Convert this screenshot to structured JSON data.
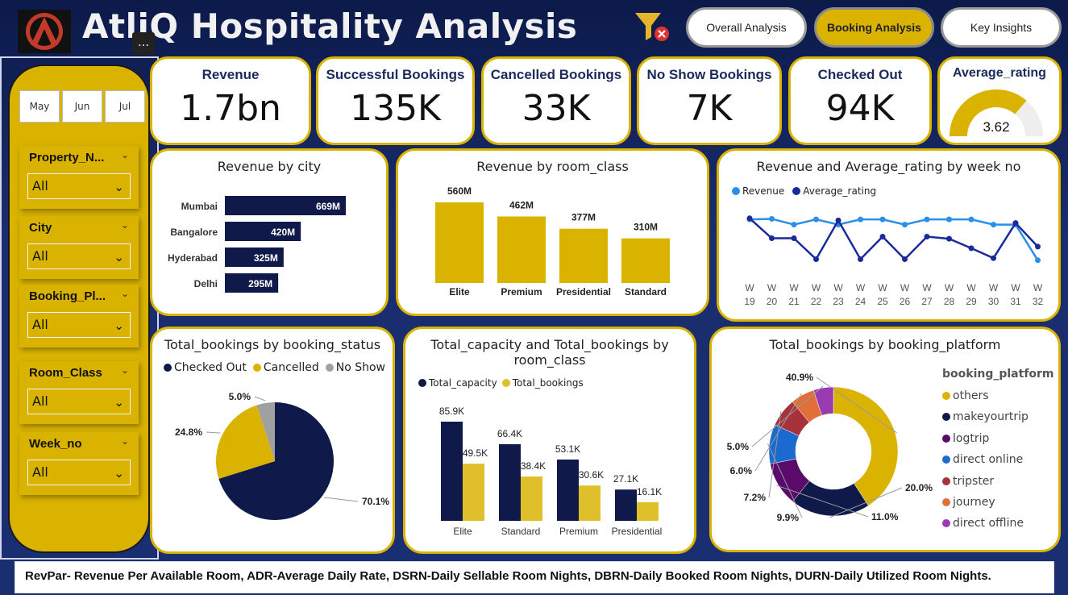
{
  "header": {
    "title": "AtliQ Hospitality Analysis",
    "more_label": "…",
    "nav": [
      "Overall Analysis",
      "Booking Analysis",
      "Key Insights"
    ],
    "active_nav": "Booking Analysis"
  },
  "sidebar": {
    "months": [
      "May",
      "Jun",
      "Jul"
    ],
    "slicers": [
      {
        "label": "Property_N...",
        "value": "All"
      },
      {
        "label": "City",
        "value": "All"
      },
      {
        "label": "Booking_Pl...",
        "value": "All"
      },
      {
        "label": "Room_Class",
        "value": "All"
      },
      {
        "label": "Week_no",
        "value": "All"
      }
    ]
  },
  "kpis": [
    {
      "title": "Revenue",
      "value": "1.7bn"
    },
    {
      "title": "Successful Bookings",
      "value": "135K"
    },
    {
      "title": "Cancelled Bookings",
      "value": "33K"
    },
    {
      "title": "No Show Bookings",
      "value": "7K"
    },
    {
      "title": "Checked Out",
      "value": "94K"
    }
  ],
  "gauge": {
    "title": "Average_rating",
    "value": "3.62",
    "min": 0,
    "max": 5,
    "fill_fraction": 0.724,
    "color_fill": "#d9b300",
    "color_track": "#eeeeee"
  },
  "charts": {
    "revenue_by_city": {
      "title": "Revenue by city"
    },
    "revenue_by_room_class": {
      "title": "Revenue by room_class"
    },
    "revenue_rating_week": {
      "title": "Revenue and Average_rating by week no",
      "legend": [
        "Revenue",
        "Average_rating"
      ]
    },
    "bookings_by_status": {
      "title": "Total_bookings by booking_status",
      "legend": [
        "Checked Out",
        "Cancelled",
        "No Show"
      ]
    },
    "capacity_bookings": {
      "title_line1": "Total_capacity and Total_bookings by",
      "title_line2": "room_class",
      "legend": [
        "Total_capacity",
        "Total_bookings"
      ]
    },
    "bookings_by_platform": {
      "title": "Total_bookings by booking_platform",
      "legend_title": "booking_platform"
    }
  },
  "chart_data": [
    {
      "type": "bar",
      "orientation": "horizontal",
      "title": "Revenue by city",
      "categories": [
        "Mumbai",
        "Bangalore",
        "Hyderabad",
        "Delhi"
      ],
      "values": [
        669,
        420,
        325,
        295
      ],
      "labels": [
        "669M",
        "420M",
        "325M",
        "295M"
      ],
      "color": "#0f1a4a"
    },
    {
      "type": "bar",
      "title": "Revenue by room_class",
      "categories": [
        "Elite",
        "Premium",
        "Presidential",
        "Standard"
      ],
      "values": [
        560,
        462,
        377,
        310
      ],
      "labels": [
        "560M",
        "462M",
        "377M",
        "310M"
      ],
      "color": "#d9b300"
    },
    {
      "type": "line",
      "title": "Revenue and Average_rating by week no",
      "x": [
        "W 19",
        "W 20",
        "W 21",
        "W 22",
        "W 23",
        "W 24",
        "W 25",
        "W 26",
        "W 27",
        "W 28",
        "W 29",
        "W 30",
        "W 31",
        "W 32"
      ],
      "series": [
        {
          "name": "Revenue",
          "color": "#2a8fe8",
          "values": [
            0.86,
            0.87,
            0.76,
            0.86,
            0.76,
            0.86,
            0.86,
            0.76,
            0.86,
            0.86,
            0.86,
            0.76,
            0.76,
            0.08
          ]
        },
        {
          "name": "Average_rating",
          "color": "#1a2a9a",
          "values": [
            0.88,
            0.5,
            0.5,
            0.1,
            0.84,
            0.1,
            0.53,
            0.1,
            0.53,
            0.49,
            0.31,
            0.12,
            0.79,
            0.34
          ]
        }
      ]
    },
    {
      "type": "pie",
      "title": "Total_bookings by booking_status",
      "categories": [
        "Checked Out",
        "Cancelled",
        "No Show"
      ],
      "values": [
        70.1,
        24.8,
        5.0
      ],
      "labels": [
        "70.1%",
        "24.8%",
        "5.0%"
      ],
      "colors": [
        "#0f1a4a",
        "#d9b300",
        "#a0a0a0"
      ]
    },
    {
      "type": "bar",
      "title": "Total_capacity and Total_bookings by room_class",
      "categories": [
        "Elite",
        "Standard",
        "Premium",
        "Presidential"
      ],
      "series": [
        {
          "name": "Total_capacity",
          "values": [
            85.9,
            66.4,
            53.1,
            27.1
          ],
          "labels": [
            "85.9K",
            "66.4K",
            "53.1K",
            "27.1K"
          ],
          "color": "#0f1a4a"
        },
        {
          "name": "Total_bookings",
          "values": [
            49.5,
            38.4,
            30.6,
            16.1
          ],
          "labels": [
            "49.5K",
            "38.4K",
            "30.6K",
            "16.1K"
          ],
          "color": "#e0c02a"
        }
      ]
    },
    {
      "type": "pie",
      "subtype": "donut",
      "title": "Total_bookings by booking_platform",
      "categories": [
        "others",
        "makeyourtrip",
        "logtrip",
        "direct online",
        "tripster",
        "journey",
        "direct offline"
      ],
      "values": [
        40.9,
        20.0,
        11.0,
        9.9,
        7.2,
        6.0,
        5.0
      ],
      "labels": [
        "40.9%",
        "20.0%",
        "11.0%",
        "9.9%",
        "7.2%",
        "6.0%",
        "5.0%"
      ],
      "colors": [
        "#d9b300",
        "#0f1a4a",
        "#5a0a6a",
        "#1a6acf",
        "#a8323c",
        "#e0703a",
        "#9a3ab0"
      ]
    }
  ],
  "footer": "RevPar- Revenue Per Available Room,  ADR-Average Daily Rate, DSRN-Daily Sellable Room Nights, DBRN-Daily Booked Room Nights, DURN-Daily Utilized Room Nights."
}
